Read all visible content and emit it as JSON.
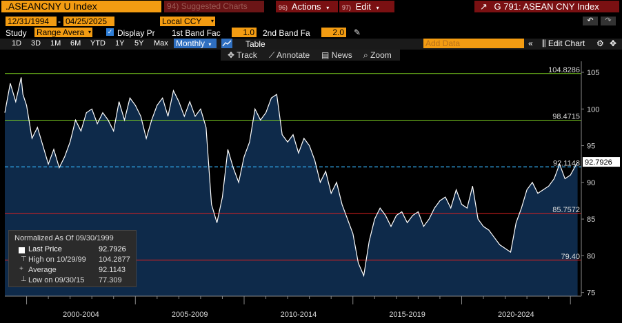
{
  "toolbar": {
    "ticker": ".ASEANCNY U Index",
    "suggested": "Suggested Charts",
    "suggested_num": "94)",
    "actions_num": "96)",
    "actions": "Actions",
    "edit_num": "97)",
    "edit": "Edit",
    "title": "G 791: ASEAN CNY Index",
    "start_date": "12/31/1994",
    "end_date": "04/25/2025",
    "currency": "Local CCY",
    "study_label": "Study",
    "study": "Range Avera",
    "display_label": "Display Pr",
    "band1_label": "1st Band Fac",
    "band1": "1.0",
    "band2_label": "2nd Band Fa",
    "band2": "2.0",
    "ranges": [
      "1D",
      "3D",
      "1M",
      "6M",
      "YTD",
      "1Y",
      "5Y",
      "Max"
    ],
    "period": "Monthly",
    "table": "Table",
    "add_data": "Add Data",
    "edit_chart": "Edit Chart",
    "tools": [
      "Track",
      "Annotate",
      "News",
      "Zoom"
    ]
  },
  "legend": {
    "header": "Normalized As Of 09/30/1999",
    "rows": [
      {
        "label": "Last Price",
        "value": "92.7926"
      },
      {
        "label": "High on 10/29/99",
        "value": "104.2877"
      },
      {
        "label": "Average",
        "value": "92.1143"
      },
      {
        "label": "Low on 09/30/15",
        "value": "77.309"
      }
    ]
  },
  "colors": {
    "accent": "#f39c12",
    "line": "#ffffff",
    "fill": "#0e2a4a",
    "upper_band": "#7ed321",
    "lower_band": "#e02020",
    "average": "#2fa3e6"
  },
  "chart_data": {
    "type": "area",
    "ylim": [
      74.5,
      106.5
    ],
    "yticks": [
      75,
      80,
      85,
      90,
      95,
      100,
      105
    ],
    "xlim": [
      1999.0,
      2025.5
    ],
    "xticks": [
      {
        "label": "2000-2004",
        "at": 2002.5
      },
      {
        "label": "2005-2009",
        "at": 2007.5
      },
      {
        "label": "2010-2014",
        "at": 2012.5
      },
      {
        "label": "2015-2019",
        "at": 2017.5
      },
      {
        "label": "2020-2024",
        "at": 2022.5
      }
    ],
    "grid": false,
    "hlines": [
      {
        "label": "104.8286",
        "value": 104.8286,
        "color": "#7ed321",
        "dash": false
      },
      {
        "label": "98.4715",
        "value": 98.4715,
        "color": "#7ed321",
        "dash": false
      },
      {
        "label": "92.1143",
        "value": 92.1143,
        "color": "#2fa3e6",
        "dash": true
      },
      {
        "label": "85.7572",
        "value": 85.7572,
        "color": "#e02020",
        "dash": false
      },
      {
        "label": "79.40",
        "value": 79.4,
        "color": "#e02020",
        "dash": false
      }
    ],
    "last_price": 92.7926,
    "series": [
      {
        "x": [
          1999.0,
          1999.25,
          1999.5,
          1999.75,
          1999.83,
          2000.0,
          2000.25,
          2000.5,
          2000.75,
          2001.0,
          2001.25,
          2001.5,
          2001.75,
          2002.0,
          2002.25,
          2002.5,
          2002.75,
          2003.0,
          2003.25,
          2003.5,
          2003.75,
          2004.0,
          2004.25,
          2004.5,
          2004.75,
          2005.0,
          2005.25,
          2005.5,
          2005.75,
          2006.0,
          2006.25,
          2006.5,
          2006.75,
          2007.0,
          2007.25,
          2007.5,
          2007.75,
          2008.0,
          2008.25,
          2008.5,
          2008.75,
          2009.0,
          2009.25,
          2009.5,
          2009.75,
          2010.0,
          2010.25,
          2010.5,
          2010.75,
          2011.0,
          2011.25,
          2011.5,
          2011.75,
          2012.0,
          2012.25,
          2012.5,
          2012.75,
          2013.0,
          2013.25,
          2013.5,
          2013.75,
          2014.0,
          2014.25,
          2014.5,
          2014.75,
          2015.0,
          2015.25,
          2015.5,
          2015.75,
          2016.0,
          2016.25,
          2016.5,
          2016.75,
          2017.0,
          2017.25,
          2017.5,
          2017.75,
          2018.0,
          2018.25,
          2018.5,
          2018.75,
          2019.0,
          2019.25,
          2019.5,
          2019.75,
          2020.0,
          2020.25,
          2020.5,
          2020.75,
          2021.0,
          2021.25,
          2021.5,
          2021.75,
          2022.0,
          2022.25,
          2022.5,
          2022.75,
          2023.0,
          2023.25,
          2023.5,
          2023.75,
          2024.0,
          2024.25,
          2024.5,
          2024.75,
          2025.0,
          2025.33
        ],
        "values": [
          99.5,
          103.5,
          101.0,
          104.3,
          102.0,
          100.5,
          96.0,
          97.5,
          95.0,
          92.5,
          94.5,
          92.0,
          93.5,
          95.5,
          98.5,
          97.0,
          99.5,
          100.0,
          98.0,
          99.5,
          98.5,
          97.0,
          101.0,
          98.5,
          101.5,
          100.5,
          99.0,
          96.0,
          98.5,
          100.5,
          101.5,
          99.0,
          102.5,
          101.0,
          99.0,
          101.0,
          99.0,
          100.0,
          97.5,
          87.0,
          84.5,
          88.0,
          94.5,
          92.0,
          90.0,
          93.5,
          95.5,
          100.0,
          98.5,
          99.5,
          101.5,
          102.0,
          96.5,
          95.5,
          96.5,
          94.0,
          96.0,
          95.0,
          93.0,
          90.0,
          91.5,
          88.5,
          90.0,
          87.0,
          85.0,
          83.0,
          79.0,
          77.3,
          82.0,
          85.0,
          86.5,
          85.5,
          84.0,
          85.5,
          86.0,
          84.5,
          85.5,
          86.0,
          84.0,
          85.0,
          86.5,
          87.5,
          88.0,
          86.5,
          89.0,
          87.0,
          86.5,
          89.5,
          85.0,
          84.0,
          83.5,
          82.5,
          81.5,
          81.0,
          80.5,
          84.5,
          86.5,
          89.0,
          90.0,
          88.5,
          89.0,
          89.5,
          90.5,
          92.5,
          90.5,
          91.0,
          92.79
        ]
      }
    ]
  }
}
